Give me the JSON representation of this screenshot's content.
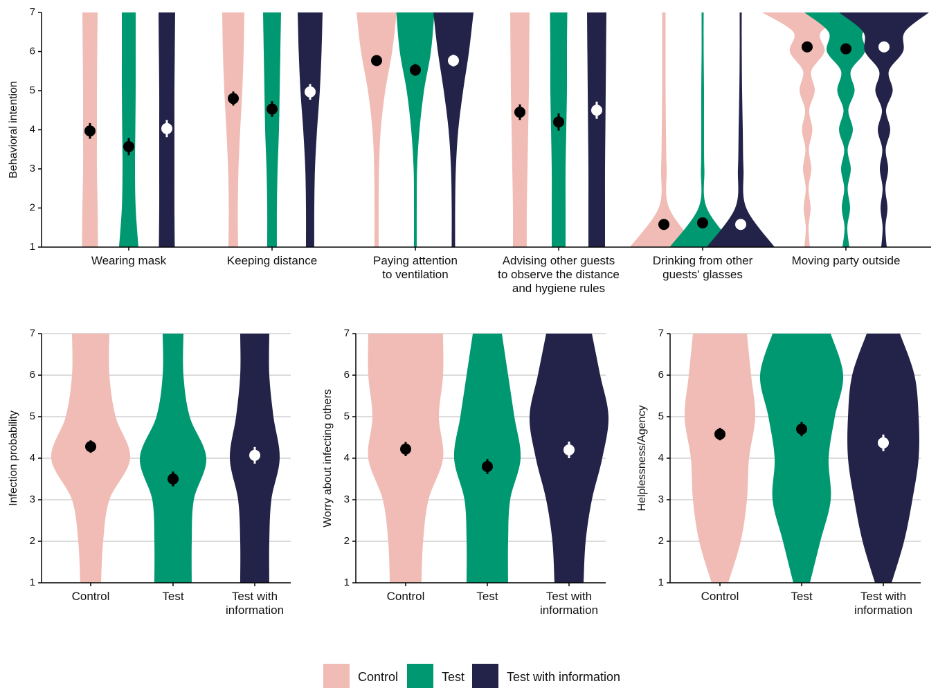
{
  "chart_data": [
    {
      "type": "violin",
      "y_label": "Behavioral intention",
      "categories": [
        "Wearing mask",
        "Keeping distance",
        "Paying attention\nto ventilation",
        "Advising other guests\nto observe the distance\nand hygiene rules",
        "Drinking from other\nguests' glasses",
        "Moving party outside"
      ],
      "ylim": [
        1,
        7
      ],
      "yticks": [
        1,
        2,
        3,
        4,
        5,
        6,
        7
      ],
      "grid": false,
      "series": [
        {
          "name": "Control",
          "color": "#f0bcb5",
          "marker_color": "#000000",
          "values": [
            3.97,
            4.8,
            5.77,
            4.45,
            1.58,
            6.12
          ],
          "errors": [
            0.2,
            0.18,
            0.13,
            0.2,
            0.1,
            0.1
          ],
          "density": [
            [
              0.23,
              0.22,
              0.2,
              0.2,
              0.2,
              0.21,
              0.22
            ],
            [
              0.14,
              0.13,
              0.15,
              0.2,
              0.26,
              0.3,
              0.32
            ],
            [
              0.06,
              0.06,
              0.07,
              0.12,
              0.25,
              0.45,
              0.58
            ],
            [
              0.2,
              0.2,
              0.22,
              0.24,
              0.26,
              0.27,
              0.28
            ],
            [
              0.98,
              0.15,
              0.08,
              0.06,
              0.05,
              0.05,
              0.05
            ],
            [
              0.08,
              0.04,
              0.1,
              0.04,
              0.12,
              0.05,
              0.15,
              0.06,
              0.22,
              0.12,
              0.5,
              0.4,
              1.3
            ]
          ]
        },
        {
          "name": "Test",
          "color": "#009870",
          "marker_color": "#000000",
          "values": [
            3.57,
            4.53,
            5.53,
            4.2,
            1.62,
            6.07
          ],
          "errors": [
            0.22,
            0.2,
            0.15,
            0.22,
            0.1,
            0.1
          ],
          "density": [
            [
              0.28,
              0.2,
              0.18,
              0.19,
              0.2,
              0.2,
              0.2
            ],
            [
              0.14,
              0.14,
              0.16,
              0.2,
              0.22,
              0.24,
              0.26
            ],
            [
              0.04,
              0.04,
              0.05,
              0.12,
              0.25,
              0.45,
              0.55
            ],
            [
              0.2,
              0.2,
              0.2,
              0.22,
              0.24,
              0.24,
              0.25
            ],
            [
              0.95,
              0.12,
              0.05,
              0.04,
              0.04,
              0.03,
              0.03
            ],
            [
              0.1,
              0.04,
              0.12,
              0.05,
              0.14,
              0.05,
              0.2,
              0.07,
              0.25,
              0.14,
              0.55,
              0.5,
              1.2
            ]
          ]
        },
        {
          "name": "Test with information",
          "color": "#23234a",
          "marker_color": "#ffffff",
          "values": [
            4.03,
            4.97,
            5.77,
            4.5,
            1.58,
            6.12
          ],
          "errors": [
            0.22,
            0.2,
            0.15,
            0.22,
            0.1,
            0.1
          ],
          "density": [
            [
              0.23,
              0.22,
              0.22,
              0.22,
              0.22,
              0.23,
              0.24
            ],
            [
              0.12,
              0.12,
              0.14,
              0.2,
              0.28,
              0.33,
              0.36
            ],
            [
              0.05,
              0.05,
              0.07,
              0.14,
              0.28,
              0.45,
              0.58
            ],
            [
              0.24,
              0.24,
              0.24,
              0.25,
              0.26,
              0.27,
              0.28
            ],
            [
              0.98,
              0.16,
              0.08,
              0.06,
              0.04,
              0.03,
              0.03
            ],
            [
              0.08,
              0.04,
              0.1,
              0.04,
              0.12,
              0.05,
              0.18,
              0.06,
              0.25,
              0.14,
              0.55,
              0.6,
              1.3
            ]
          ]
        }
      ]
    },
    {
      "type": "violin",
      "y_label": "Infection probability",
      "categories": [
        "Control",
        "Test",
        "Test with\ninformation"
      ],
      "ylim": [
        1,
        7
      ],
      "yticks": [
        1,
        2,
        3,
        4,
        5,
        6,
        7
      ],
      "grid": true,
      "series": [
        {
          "color": "#f0bcb5",
          "marker_color": "#000000",
          "values": [
            4.28
          ],
          "errors": [
            0.15
          ],
          "density": [
            [
              0.25,
              0.3,
              0.45,
              0.95,
              0.6,
              0.45,
              0.45
            ]
          ]
        },
        {
          "color": "#009870",
          "marker_color": "#000000",
          "values": [
            3.5
          ],
          "errors": [
            0.18
          ],
          "density": [
            [
              0.45,
              0.45,
              0.5,
              0.8,
              0.4,
              0.25,
              0.25
            ]
          ]
        },
        {
          "color": "#23234a",
          "marker_color": "#ffffff",
          "values": [
            4.07
          ],
          "errors": [
            0.2
          ],
          "density": [
            [
              0.35,
              0.35,
              0.4,
              0.6,
              0.45,
              0.35,
              0.35
            ]
          ]
        }
      ]
    },
    {
      "type": "violin",
      "y_label": "Worry about infecting others",
      "categories": [
        "Control",
        "Test",
        "Test with\ninformation"
      ],
      "ylim": [
        1,
        7
      ],
      "yticks": [
        1,
        2,
        3,
        4,
        5,
        6,
        7
      ],
      "grid": true,
      "series": [
        {
          "color": "#f0bcb5",
          "marker_color": "#000000",
          "values": [
            4.22
          ],
          "errors": [
            0.17
          ],
          "density": [
            [
              0.38,
              0.42,
              0.55,
              0.9,
              0.8,
              0.9,
              0.9
            ]
          ]
        },
        {
          "color": "#009870",
          "marker_color": "#000000",
          "values": [
            3.8
          ],
          "errors": [
            0.18
          ],
          "density": [
            [
              0.5,
              0.5,
              0.55,
              0.8,
              0.65,
              0.5,
              0.35
            ]
          ]
        },
        {
          "color": "#23234a",
          "marker_color": "#ffffff",
          "values": [
            4.2
          ],
          "errors": [
            0.2
          ],
          "density": [
            [
              0.35,
              0.4,
              0.55,
              0.8,
              0.95,
              0.75,
              0.55
            ]
          ]
        }
      ]
    },
    {
      "type": "violin",
      "y_label": "Helplessness/Agency",
      "categories": [
        "Control",
        "Test",
        "Test with\ninformation"
      ],
      "ylim": [
        1,
        7
      ],
      "yticks": [
        1,
        2,
        3,
        4,
        5,
        6,
        7
      ],
      "grid": true,
      "series": [
        {
          "color": "#f0bcb5",
          "marker_color": "#000000",
          "values": [
            4.58
          ],
          "errors": [
            0.15
          ],
          "density": [
            [
              0.2,
              0.5,
              0.65,
              0.7,
              0.85,
              0.75,
              0.65
            ]
          ]
        },
        {
          "color": "#009870",
          "marker_color": "#000000",
          "values": [
            4.7
          ],
          "errors": [
            0.17
          ],
          "density": [
            [
              0.2,
              0.45,
              0.7,
              0.65,
              0.8,
              1.0,
              0.7
            ]
          ]
        },
        {
          "color": "#23234a",
          "marker_color": "#ffffff",
          "values": [
            4.37
          ],
          "errors": [
            0.2
          ],
          "density": [
            [
              0.2,
              0.5,
              0.7,
              0.85,
              0.85,
              0.75,
              0.4
            ]
          ]
        }
      ]
    }
  ]
}
